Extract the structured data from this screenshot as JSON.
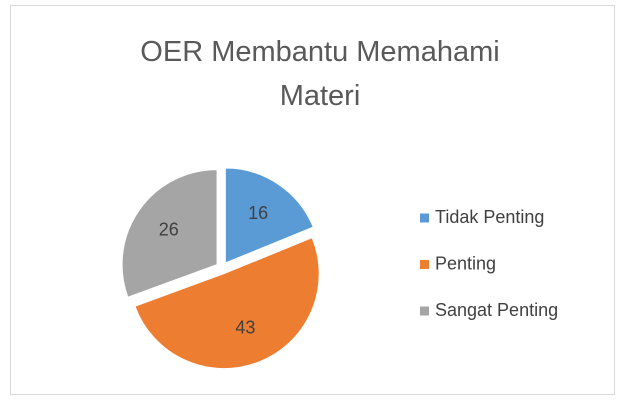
{
  "chart_data": {
    "type": "pie",
    "title": "OER Membantu Memahami Materi",
    "categories": [
      "Tidak Penting",
      "Penting",
      "Sangat Penting"
    ],
    "values": [
      16,
      43,
      26
    ],
    "colors": [
      "#5b9bd5",
      "#ed7d31",
      "#a5a5a5"
    ],
    "legend": "right"
  }
}
